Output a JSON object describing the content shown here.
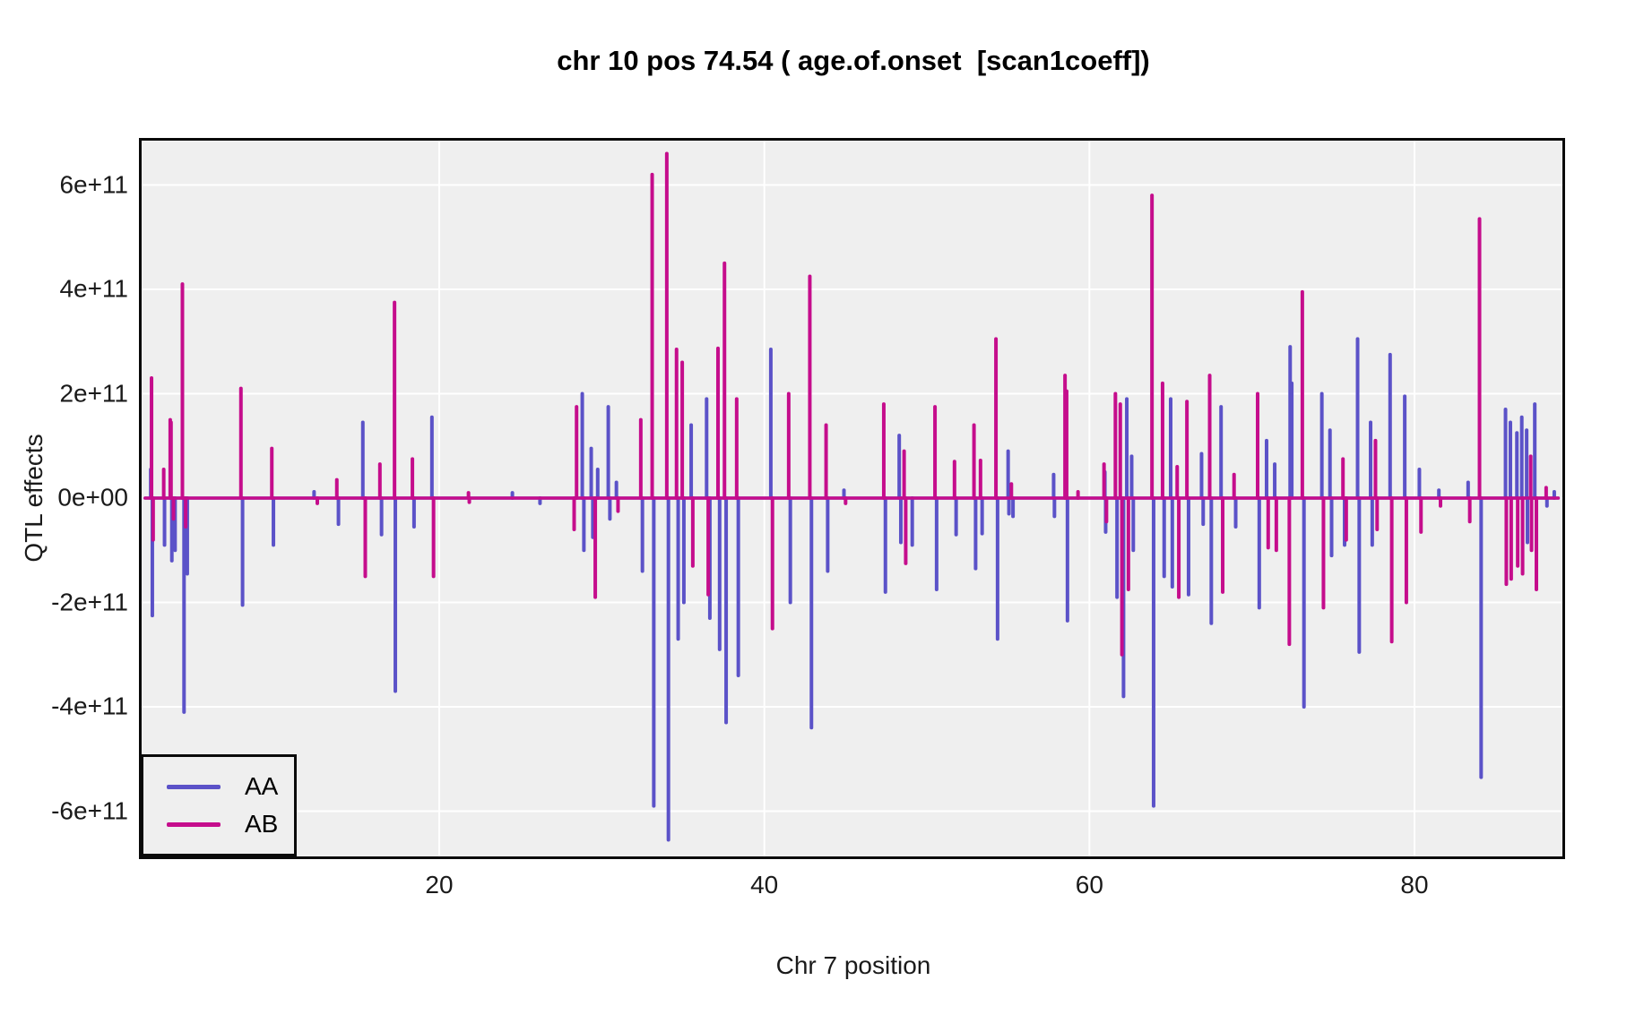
{
  "chart_data": {
    "type": "line",
    "title": "chr 10 pos 74.54 ( age.of.onset  [scan1coeff])",
    "xlabel": "Chr 7 position",
    "ylabel": "QTL effects",
    "x_ticks": [
      20,
      40,
      60,
      80
    ],
    "y_ticks": [
      {
        "label": "6e+11",
        "value": 6
      },
      {
        "label": "4e+11",
        "value": 4
      },
      {
        "label": "2e+11",
        "value": 2
      },
      {
        "label": "0e+00",
        "value": 0
      },
      {
        "label": "-2e+11",
        "value": -2
      },
      {
        "label": "-4e+11",
        "value": -4
      },
      {
        "label": "-6e+11",
        "value": -6
      }
    ],
    "xlim": [
      1.7,
      89.1
    ],
    "ylim_e11": [
      -6.86,
      6.85
    ],
    "value_unit": "1e+11",
    "grid": {
      "x_values": [
        20,
        40,
        60,
        80
      ],
      "y_values": [
        6,
        4,
        2,
        0,
        -2,
        -4,
        -6
      ],
      "color": "#FFFFFF",
      "on": true
    },
    "panel_bg": "#EFEFEF",
    "border_color": "#0a0a0a",
    "baseline_value": 0,
    "baseline_x": [
      1.9,
      88.85
    ],
    "legend": {
      "position": "bottom-left-inside"
    },
    "series": [
      {
        "name": "AA",
        "color": "#5B52C8",
        "spikes": [
          [
            2.25,
            0.55
          ],
          [
            2.35,
            -2.25
          ],
          [
            3.1,
            -0.9
          ],
          [
            3.55,
            -1.2
          ],
          [
            3.75,
            -1.0
          ],
          [
            4.3,
            -4.1
          ],
          [
            4.5,
            -1.45
          ],
          [
            7.9,
            -2.05
          ],
          [
            9.8,
            -0.9
          ],
          [
            12.3,
            0.12
          ],
          [
            13.8,
            -0.5
          ],
          [
            15.3,
            1.45
          ],
          [
            16.45,
            -0.7
          ],
          [
            17.3,
            -3.7
          ],
          [
            18.45,
            -0.55
          ],
          [
            19.55,
            1.55
          ],
          [
            24.5,
            0.1
          ],
          [
            26.2,
            -0.1
          ],
          [
            28.8,
            2.0
          ],
          [
            28.9,
            -1.0
          ],
          [
            29.35,
            0.95
          ],
          [
            29.45,
            -0.75
          ],
          [
            29.75,
            0.55
          ],
          [
            30.4,
            1.75
          ],
          [
            30.5,
            -0.4
          ],
          [
            30.9,
            0.3
          ],
          [
            32.5,
            -1.4
          ],
          [
            33.2,
            -5.9
          ],
          [
            34.1,
            -6.55
          ],
          [
            34.7,
            -2.7
          ],
          [
            35.05,
            -2.0
          ],
          [
            35.5,
            1.4
          ],
          [
            36.45,
            1.9
          ],
          [
            36.65,
            -2.3
          ],
          [
            37.25,
            -2.9
          ],
          [
            37.65,
            -4.3
          ],
          [
            38.4,
            -3.4
          ],
          [
            40.4,
            2.85
          ],
          [
            41.6,
            -2.0
          ],
          [
            42.9,
            -4.4
          ],
          [
            43.9,
            -1.4
          ],
          [
            44.9,
            0.15
          ],
          [
            47.45,
            -1.8
          ],
          [
            48.3,
            1.2
          ],
          [
            48.4,
            -0.85
          ],
          [
            49.1,
            -0.9
          ],
          [
            50.6,
            -1.75
          ],
          [
            51.8,
            -0.7
          ],
          [
            53.0,
            -1.35
          ],
          [
            53.4,
            -0.68
          ],
          [
            54.35,
            -2.7
          ],
          [
            55.0,
            0.9
          ],
          [
            55.05,
            -0.3
          ],
          [
            55.3,
            -0.35
          ],
          [
            57.8,
            0.45
          ],
          [
            57.85,
            -0.35
          ],
          [
            58.65,
            -2.35
          ],
          [
            60.95,
            0.5
          ],
          [
            61.0,
            -0.65
          ],
          [
            61.7,
            -1.9
          ],
          [
            62.1,
            -3.8
          ],
          [
            62.3,
            1.9
          ],
          [
            62.6,
            0.8
          ],
          [
            62.7,
            -1.0
          ],
          [
            63.95,
            -5.9
          ],
          [
            64.6,
            -1.5
          ],
          [
            65.0,
            1.9
          ],
          [
            65.1,
            -1.7
          ],
          [
            66.1,
            -1.85
          ],
          [
            66.9,
            0.85
          ],
          [
            67.0,
            -0.5
          ],
          [
            67.5,
            -2.4
          ],
          [
            68.1,
            1.75
          ],
          [
            69.0,
            -0.55
          ],
          [
            70.45,
            -2.1
          ],
          [
            70.9,
            1.1
          ],
          [
            71.4,
            0.65
          ],
          [
            72.35,
            2.9
          ],
          [
            72.45,
            2.2
          ],
          [
            73.2,
            -4.0
          ],
          [
            74.3,
            2.0
          ],
          [
            74.8,
            1.3
          ],
          [
            74.9,
            -1.1
          ],
          [
            75.7,
            -0.9
          ],
          [
            76.5,
            3.05
          ],
          [
            76.6,
            -2.95
          ],
          [
            77.3,
            1.45
          ],
          [
            77.4,
            -0.9
          ],
          [
            78.5,
            2.75
          ],
          [
            79.4,
            1.95
          ],
          [
            80.3,
            0.55
          ],
          [
            81.5,
            0.15
          ],
          [
            83.3,
            0.3
          ],
          [
            84.1,
            -5.35
          ],
          [
            85.6,
            1.7
          ],
          [
            85.9,
            1.45
          ],
          [
            86.3,
            1.25
          ],
          [
            86.6,
            1.55
          ],
          [
            86.9,
            1.3
          ],
          [
            86.95,
            -0.85
          ],
          [
            87.4,
            1.8
          ],
          [
            88.15,
            -0.15
          ],
          [
            88.6,
            0.12
          ]
        ]
      },
      {
        "name": "AB",
        "color": "#C50D8C",
        "spikes": [
          [
            2.3,
            2.3
          ],
          [
            2.4,
            -0.8
          ],
          [
            3.05,
            0.55
          ],
          [
            3.45,
            1.5
          ],
          [
            3.5,
            1.45
          ],
          [
            3.65,
            -0.4
          ],
          [
            4.2,
            4.1
          ],
          [
            4.4,
            -0.55
          ],
          [
            7.8,
            2.1
          ],
          [
            9.7,
            0.95
          ],
          [
            12.5,
            -0.1
          ],
          [
            13.7,
            0.35
          ],
          [
            15.45,
            -1.5
          ],
          [
            16.35,
            0.65
          ],
          [
            17.25,
            3.75
          ],
          [
            18.35,
            0.75
          ],
          [
            19.65,
            -1.5
          ],
          [
            21.8,
            0.1
          ],
          [
            21.85,
            -0.08
          ],
          [
            28.3,
            -0.6
          ],
          [
            28.45,
            1.75
          ],
          [
            29.6,
            -1.9
          ],
          [
            31.0,
            -0.25
          ],
          [
            32.4,
            1.5
          ],
          [
            33.1,
            6.2
          ],
          [
            34.0,
            6.6
          ],
          [
            34.6,
            2.85
          ],
          [
            34.95,
            2.6
          ],
          [
            35.6,
            -1.3
          ],
          [
            36.55,
            -1.85
          ],
          [
            37.15,
            2.87
          ],
          [
            37.55,
            4.5
          ],
          [
            38.3,
            1.9
          ],
          [
            40.5,
            -2.5
          ],
          [
            41.5,
            2.0
          ],
          [
            42.8,
            4.25
          ],
          [
            43.8,
            1.4
          ],
          [
            45.0,
            -0.1
          ],
          [
            47.35,
            1.8
          ],
          [
            48.6,
            0.9
          ],
          [
            48.7,
            -1.25
          ],
          [
            50.5,
            1.75
          ],
          [
            51.7,
            0.7
          ],
          [
            52.9,
            1.4
          ],
          [
            53.3,
            0.72
          ],
          [
            54.25,
            3.05
          ],
          [
            55.2,
            0.27
          ],
          [
            58.5,
            2.35
          ],
          [
            58.6,
            2.05
          ],
          [
            59.3,
            0.12
          ],
          [
            60.9,
            0.65
          ],
          [
            61.05,
            -0.45
          ],
          [
            61.6,
            2.0
          ],
          [
            61.9,
            1.8
          ],
          [
            62.0,
            -3.0
          ],
          [
            62.4,
            -1.75
          ],
          [
            63.85,
            5.8
          ],
          [
            64.5,
            2.2
          ],
          [
            65.4,
            0.6
          ],
          [
            65.5,
            -1.9
          ],
          [
            66.0,
            1.85
          ],
          [
            67.4,
            2.35
          ],
          [
            68.2,
            -1.8
          ],
          [
            68.9,
            0.45
          ],
          [
            70.35,
            2.0
          ],
          [
            71.0,
            -0.95
          ],
          [
            71.5,
            -1.0
          ],
          [
            72.3,
            -2.8
          ],
          [
            73.1,
            3.95
          ],
          [
            74.4,
            -2.1
          ],
          [
            75.6,
            0.75
          ],
          [
            75.8,
            -0.8
          ],
          [
            77.6,
            1.1
          ],
          [
            77.7,
            -0.6
          ],
          [
            78.6,
            -2.75
          ],
          [
            79.5,
            -2.0
          ],
          [
            80.4,
            -0.65
          ],
          [
            81.6,
            -0.15
          ],
          [
            83.4,
            -0.45
          ],
          [
            84.0,
            5.35
          ],
          [
            85.65,
            -1.65
          ],
          [
            85.95,
            -1.55
          ],
          [
            86.35,
            -1.3
          ],
          [
            86.65,
            -1.45
          ],
          [
            87.15,
            0.8
          ],
          [
            87.2,
            -1.0
          ],
          [
            87.5,
            -1.75
          ],
          [
            88.1,
            0.2
          ]
        ]
      }
    ]
  }
}
